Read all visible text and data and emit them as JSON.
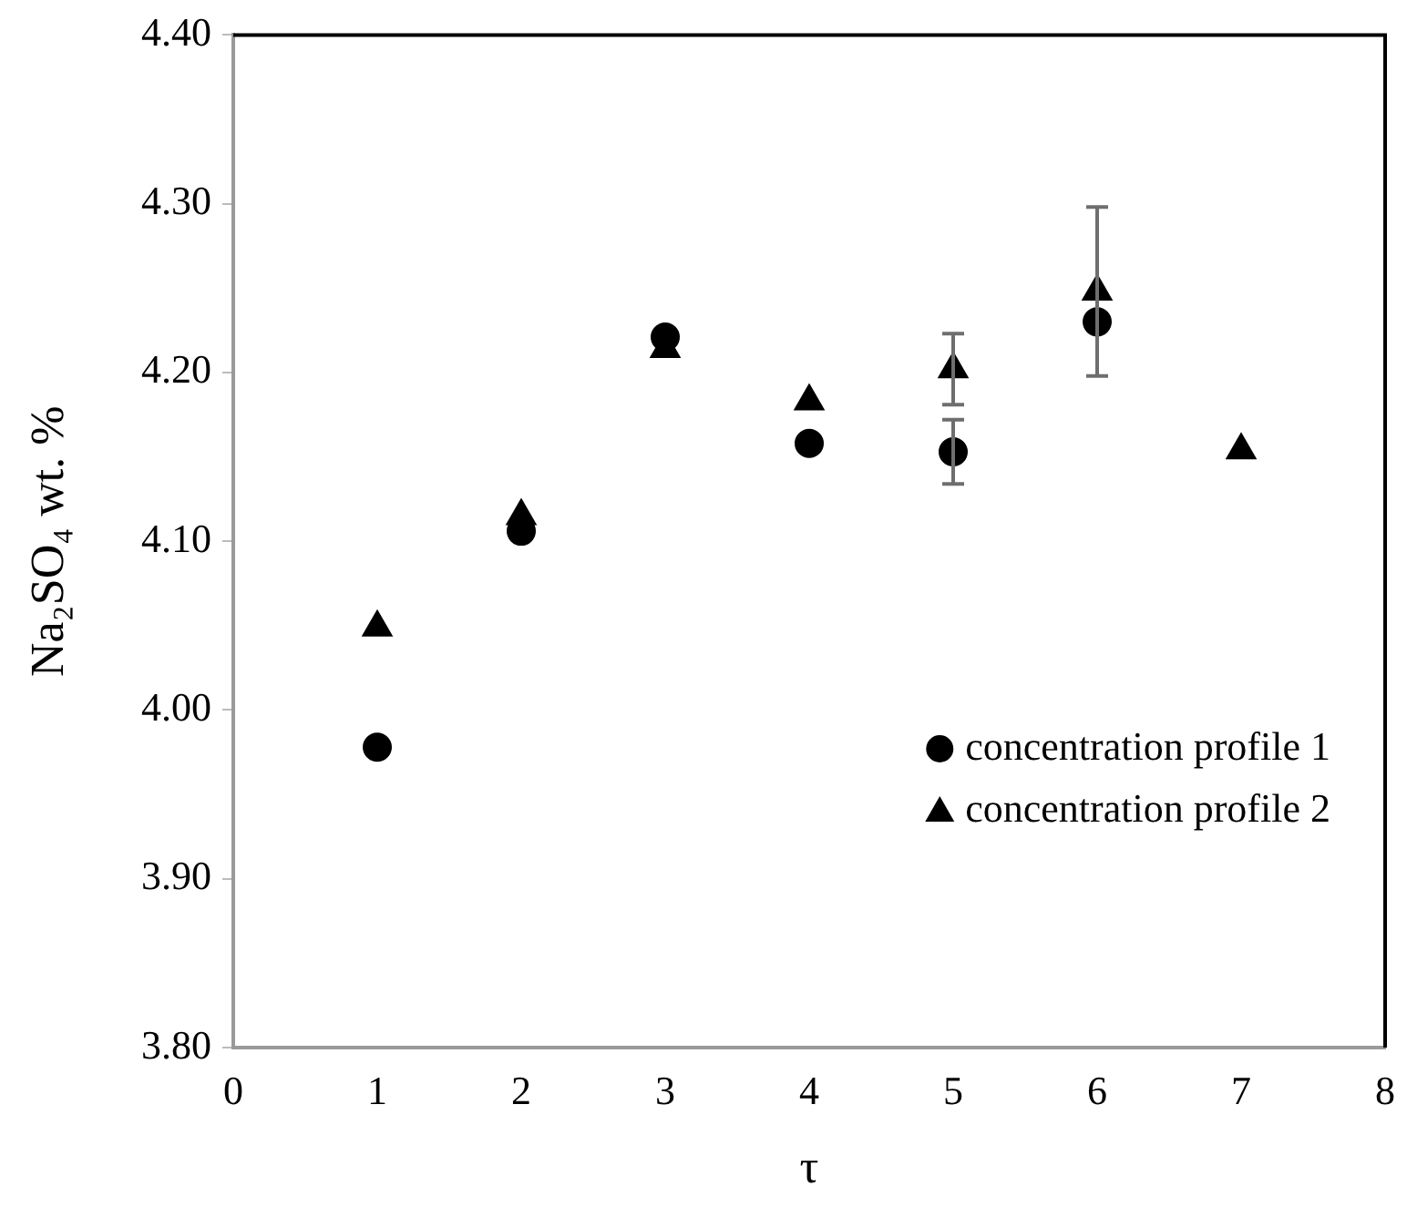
{
  "chart_data": {
    "type": "scatter",
    "xlabel": "τ",
    "ylabel": "Na₂SO₄ wt. %",
    "x": [
      1,
      2,
      3,
      4,
      5,
      6,
      7
    ],
    "series": [
      {
        "name": "concentration profile 1",
        "color": "#000000",
        "marker": "circle",
        "values": [
          3.978,
          4.106,
          4.221,
          4.158,
          4.153,
          4.23,
          null
        ],
        "errors": [
          null,
          null,
          null,
          null,
          0.019,
          null,
          null
        ]
      },
      {
        "name": "concentration profile 2",
        "color": "#000000",
        "marker": "triangle",
        "values": [
          4.049,
          4.115,
          4.214,
          4.183,
          4.202,
          4.248,
          4.154
        ],
        "errors": [
          null,
          null,
          null,
          null,
          0.021,
          0.05,
          null
        ]
      }
    ],
    "xlim": [
      0,
      8
    ],
    "xticks": [
      0,
      1,
      2,
      3,
      4,
      5,
      6,
      7,
      8
    ],
    "ylim": [
      3.8,
      4.4
    ],
    "yticks": [
      {
        "value": 3.8,
        "label": "3.80"
      },
      {
        "value": 3.9,
        "label": "3.90"
      },
      {
        "value": 4.0,
        "label": "4.00"
      },
      {
        "value": 4.1,
        "label": "4.10"
      },
      {
        "value": 4.2,
        "label": "4.20"
      },
      {
        "value": 4.3,
        "label": "4.30"
      },
      {
        "value": 4.4,
        "label": "4.40"
      }
    ],
    "grid": false,
    "legend": "bottom right"
  }
}
